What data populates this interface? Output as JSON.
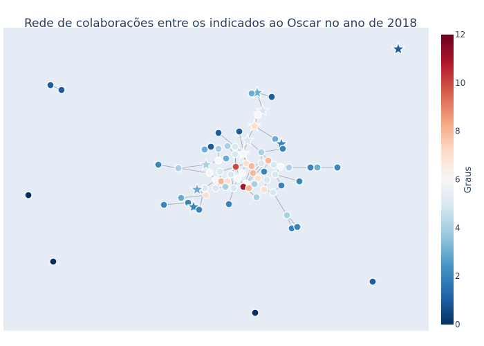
{
  "chart_data": {
    "type": "scatter",
    "title": "Rede de colaborações entre os indicados ao Oscar no ano de 2018",
    "subtype": "network graph",
    "colorbar": {
      "title": "Graus",
      "range": [
        0,
        12
      ],
      "tick_labels": [
        "0",
        "2",
        "4",
        "6",
        "8",
        "10",
        "12"
      ],
      "colorscale": [
        "#053061",
        "#2166ac",
        "#4393c3",
        "#92c5de",
        "#d1e5f0",
        "#f7f7f7",
        "#fddbc7",
        "#f4a582",
        "#d6604d",
        "#b2182b",
        "#67001f"
      ]
    },
    "plot_background": "#e5ecf6",
    "node_markers": [
      "circle",
      "star"
    ],
    "grid": false,
    "axes_visible": false
  }
}
